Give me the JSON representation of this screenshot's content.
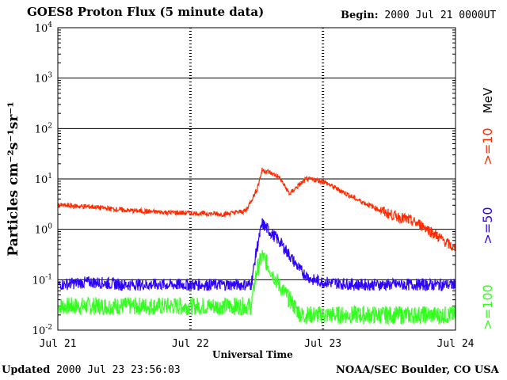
{
  "header": {
    "title": "GOES8 Proton Flux (5 minute data)",
    "begin_label": "Begin:",
    "begin_value": "2000 Jul 21 0000UT"
  },
  "footer": {
    "updated_label": "Updated",
    "updated_value": "2000 Jul 23 23:56:03",
    "credit": "NOAA/SEC Boulder, CO USA"
  },
  "legend": {
    "energy_unit": "MeV",
    "items": [
      {
        "label": ">=10",
        "color": "#ff2a00"
      },
      {
        "label": ">=50",
        "color": "#2d00ff"
      },
      {
        "label": ">=100",
        "color": "#33ff1f"
      }
    ]
  },
  "chart_data": {
    "type": "line",
    "title": "GOES8 Proton Flux (5 minute data)",
    "xlabel": "Universal Time",
    "ylabel": "Particles cm⁻²s⁻¹sr⁻¹",
    "y_scale": "log",
    "ylim": [
      0.01,
      10000
    ],
    "y_ticks": [
      {
        "value": 0.01,
        "base": "10",
        "exp": "-2"
      },
      {
        "value": 0.1,
        "base": "10",
        "exp": "-1"
      },
      {
        "value": 1,
        "base": "10",
        "exp": "0"
      },
      {
        "value": 10,
        "base": "10",
        "exp": "1"
      },
      {
        "value": 100,
        "base": "10",
        "exp": "2"
      },
      {
        "value": 1000,
        "base": "10",
        "exp": "3"
      },
      {
        "value": 10000,
        "base": "10",
        "exp": "4"
      }
    ],
    "x_ticks": [
      "Jul 21",
      "Jul 22",
      "Jul 23",
      "Jul 24"
    ],
    "xlim": [
      "2000-07-21 00:00",
      "2000-07-24 00:00"
    ],
    "grid": "horizontal decade lines; dashed day separators",
    "series": [
      {
        "name": ">=10 MeV",
        "color": "#ff2a00",
        "x": [
          "2000-07-21 00:00",
          "2000-07-21 06:00",
          "2000-07-21 12:00",
          "2000-07-21 18:00",
          "2000-07-22 00:00",
          "2000-07-22 06:00",
          "2000-07-22 10:00",
          "2000-07-22 12:00",
          "2000-07-22 13:00",
          "2000-07-22 14:00",
          "2000-07-22 16:00",
          "2000-07-22 18:00",
          "2000-07-22 19:00",
          "2000-07-22 21:00",
          "2000-07-23 00:00",
          "2000-07-23 03:00",
          "2000-07-23 06:00",
          "2000-07-23 09:00",
          "2000-07-23 12:00",
          "2000-07-23 15:00",
          "2000-07-23 18:00",
          "2000-07-23 21:00",
          "2000-07-24 00:00"
        ],
        "values": [
          3.0,
          2.8,
          2.4,
          2.2,
          2.1,
          2.0,
          2.3,
          6.0,
          15.0,
          14.0,
          11.0,
          5.0,
          6.5,
          10.0,
          9.0,
          6.0,
          4.0,
          2.8,
          2.0,
          1.6,
          1.2,
          0.7,
          0.4
        ]
      },
      {
        "name": ">=50 MeV",
        "color": "#2d00ff",
        "x": [
          "2000-07-21 00:00",
          "2000-07-21 06:00",
          "2000-07-21 12:00",
          "2000-07-21 18:00",
          "2000-07-22 00:00",
          "2000-07-22 06:00",
          "2000-07-22 11:00",
          "2000-07-22 12:00",
          "2000-07-22 13:00",
          "2000-07-22 14:00",
          "2000-07-22 16:00",
          "2000-07-22 18:00",
          "2000-07-22 20:00",
          "2000-07-22 22:00",
          "2000-07-23 00:00",
          "2000-07-23 06:00",
          "2000-07-23 12:00",
          "2000-07-23 18:00",
          "2000-07-24 00:00"
        ],
        "values": [
          0.08,
          0.09,
          0.08,
          0.08,
          0.08,
          0.08,
          0.08,
          0.4,
          1.3,
          1.0,
          0.6,
          0.3,
          0.15,
          0.1,
          0.09,
          0.08,
          0.08,
          0.08,
          0.08
        ]
      },
      {
        "name": ">=100 MeV",
        "color": "#33ff1f",
        "x": [
          "2000-07-21 00:00",
          "2000-07-21 06:00",
          "2000-07-21 12:00",
          "2000-07-21 18:00",
          "2000-07-22 00:00",
          "2000-07-22 06:00",
          "2000-07-22 11:00",
          "2000-07-22 12:00",
          "2000-07-22 13:00",
          "2000-07-22 14:00",
          "2000-07-22 16:00",
          "2000-07-22 18:00",
          "2000-07-22 20:00",
          "2000-07-23 00:00",
          "2000-07-23 06:00",
          "2000-07-23 12:00",
          "2000-07-23 18:00",
          "2000-07-24 00:00"
        ],
        "values": [
          0.03,
          0.03,
          0.03,
          0.03,
          0.03,
          0.03,
          0.03,
          0.15,
          0.3,
          0.2,
          0.08,
          0.04,
          0.02,
          0.02,
          0.02,
          0.02,
          0.02,
          0.02
        ]
      }
    ]
  }
}
